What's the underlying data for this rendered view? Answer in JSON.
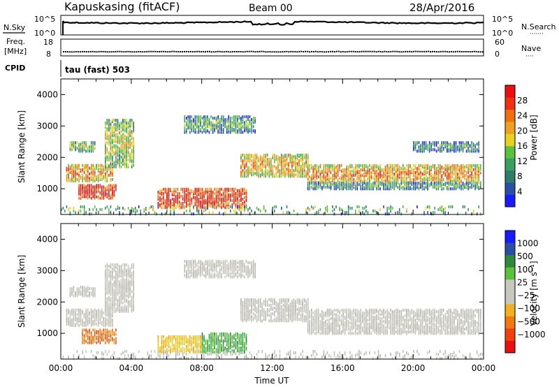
{
  "header": {
    "station": "Kapuskasing (fitACF)",
    "beam": "Beam 00",
    "date": "28/Apr/2016"
  },
  "nsky_panel": {
    "left_label": "N.Sky",
    "left_ticks": [
      "10^5",
      "10^0"
    ],
    "right_ticks": [
      "10^5",
      "10^0"
    ],
    "right_label": "N.Search",
    "right_label_marker": "·······"
  },
  "freq_panel": {
    "left_label_line1": "Freq.",
    "left_label_line2": "[MHz]",
    "left_ticks": [
      "18",
      "8"
    ],
    "right_ticks": [
      "60",
      "0"
    ],
    "right_label": "Nave",
    "right_label_marker": "····"
  },
  "cpid": {
    "label": "CPID",
    "value": "tau (fast) 503"
  },
  "colors": {
    "power_scale": [
      "#1a1aff",
      "#2a4fa8",
      "#2e7d6a",
      "#3aa060",
      "#5ac23a",
      "#e8d020",
      "#f0a020",
      "#f07010",
      "#f03010",
      "#e81010"
    ],
    "velocity_scale": [
      "#e81010",
      "#f04010",
      "#f07a10",
      "#f0b020",
      "#c8c8c0",
      "#c8c8c0",
      "#5ac23a",
      "#2e8a3a",
      "#2a4fa8",
      "#1a1aff"
    ],
    "gray_scatter": "#c4c4bc"
  },
  "chart_data": [
    {
      "type": "heatmap",
      "panel": "power",
      "ylabel": "Slant Range [km]",
      "xlim": [
        0,
        24
      ],
      "ylim": [
        180,
        4500
      ],
      "yticks": [
        "1000",
        "2000",
        "3000",
        "4000"
      ],
      "colorbar": {
        "label": "Power [dB]",
        "ticks": [
          "4",
          "8",
          "12",
          "16",
          "20",
          "24",
          "28"
        ],
        "range": [
          0,
          32
        ]
      },
      "regions": [
        {
          "t0": 0.3,
          "t1": 3.0,
          "r0": 1250,
          "r1": 1750,
          "level": 0.55
        },
        {
          "t0": 1.0,
          "t1": 3.2,
          "r0": 700,
          "r1": 1150,
          "level": 0.8
        },
        {
          "t0": 2.5,
          "t1": 4.2,
          "r0": 1700,
          "r1": 3200,
          "level": 0.35
        },
        {
          "t0": 5.5,
          "t1": 10.5,
          "r0": 400,
          "r1": 1000,
          "level": 0.75
        },
        {
          "t0": 10.2,
          "t1": 14.0,
          "r0": 1400,
          "r1": 2100,
          "level": 0.5
        },
        {
          "t0": 14.0,
          "t1": 23.9,
          "r0": 1200,
          "r1": 1750,
          "level": 0.55
        },
        {
          "t0": 14.0,
          "t1": 23.9,
          "r0": 1000,
          "r1": 1200,
          "level": 0.2
        },
        {
          "t0": 7.0,
          "t1": 11.0,
          "r0": 2800,
          "r1": 3300,
          "level": 0.2
        },
        {
          "t0": 0.5,
          "t1": 2.0,
          "r0": 2200,
          "r1": 2500,
          "level": 0.3
        },
        {
          "t0": 20.0,
          "t1": 23.8,
          "r0": 2200,
          "r1": 2500,
          "level": 0.15
        },
        {
          "t0": 0.0,
          "t1": 24.0,
          "r0": 200,
          "r1": 450,
          "level": 0.25
        }
      ]
    },
    {
      "type": "heatmap",
      "panel": "velocity",
      "ylabel": "Slant Range [km]",
      "xlabel": "Time UT",
      "xlim": [
        0,
        24
      ],
      "ylim": [
        180,
        4500
      ],
      "yticks": [
        "1000",
        "2000",
        "3000",
        "4000"
      ],
      "xticks": [
        "00:00",
        "04:00",
        "08:00",
        "12:00",
        "16:00",
        "20:00",
        "00:00"
      ],
      "colorbar": {
        "label": "Velocity [m s⁻¹]",
        "ticks": [
          "1000",
          "500",
          "100",
          "25",
          "−25",
          "−100",
          "−500",
          "−1000"
        ]
      },
      "regions": [
        {
          "t0": 0.3,
          "t1": 3.0,
          "r0": 1250,
          "r1": 1750,
          "color": "gray"
        },
        {
          "t0": 1.2,
          "t1": 3.2,
          "r0": 700,
          "r1": 1150,
          "color": "orange"
        },
        {
          "t0": 2.5,
          "t1": 4.2,
          "r0": 1700,
          "r1": 3200,
          "color": "gray"
        },
        {
          "t0": 5.5,
          "t1": 8.0,
          "r0": 400,
          "r1": 900,
          "color": "yellow"
        },
        {
          "t0": 8.0,
          "t1": 10.5,
          "r0": 400,
          "r1": 1000,
          "color": "green"
        },
        {
          "t0": 10.2,
          "t1": 14.0,
          "r0": 1400,
          "r1": 2100,
          "color": "gray"
        },
        {
          "t0": 14.0,
          "t1": 23.9,
          "r0": 1200,
          "r1": 1750,
          "color": "gray"
        },
        {
          "t0": 14.0,
          "t1": 23.9,
          "r0": 1000,
          "r1": 1200,
          "color": "gray"
        },
        {
          "t0": 7.0,
          "t1": 11.0,
          "r0": 2800,
          "r1": 3300,
          "color": "gray"
        },
        {
          "t0": 0.5,
          "t1": 2.0,
          "r0": 2200,
          "r1": 2500,
          "color": "gray"
        },
        {
          "t0": 0.0,
          "t1": 24.0,
          "r0": 200,
          "r1": 450,
          "color": "gray"
        }
      ]
    }
  ]
}
